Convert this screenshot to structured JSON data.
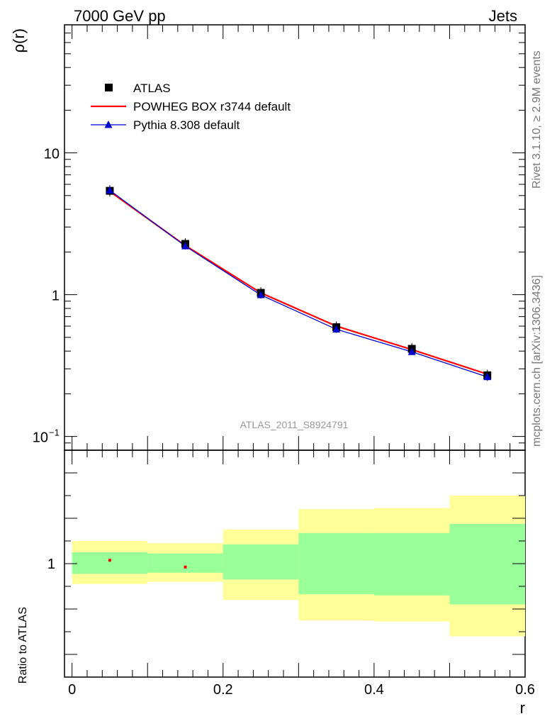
{
  "header": {
    "left_title": "7000 GeV pp",
    "right_title": "Jets"
  },
  "side_labels": {
    "rivet": "Rivet 3.1.10, ≥ 2.9M events",
    "source": "mcplots.cern.ch [arXiv:1306.3436]"
  },
  "chart_data": [
    {
      "type": "line",
      "title": "",
      "watermark": "ATLAS_2011_S8924791",
      "xlabel": "r",
      "ylabel": "ρ(r)",
      "xlim": [
        -0.01,
        0.6
      ],
      "ylim": [
        0.08,
        80
      ],
      "yscale": "log",
      "x": [
        0.05,
        0.15,
        0.25,
        0.35,
        0.45,
        0.55
      ],
      "x_bin_edges": [
        0.0,
        0.1,
        0.2,
        0.3,
        0.4,
        0.5,
        0.6
      ],
      "legend_position": "top-left",
      "series": [
        {
          "name": "ATLAS",
          "values": [
            5.4,
            2.28,
            1.03,
            0.59,
            0.415,
            0.27
          ],
          "color": "#000000",
          "marker": "square"
        },
        {
          "name": "POWHEG BOX r3744 default",
          "values": [
            5.35,
            2.22,
            1.03,
            0.6,
            0.41,
            0.275
          ],
          "color": "#ff0000",
          "marker": "line"
        },
        {
          "name": "Pythia 8.308 default",
          "values": [
            5.45,
            2.2,
            0.995,
            0.57,
            0.395,
            0.263
          ],
          "color": "#0000cc",
          "marker": "triangle"
        }
      ],
      "yticks": [
        {
          "value": 10,
          "label": "10"
        },
        {
          "value": 1,
          "label": "1"
        },
        {
          "value": 0.1,
          "label": "10",
          "sup": "−1"
        }
      ]
    },
    {
      "type": "area",
      "title": "",
      "xlabel": "r",
      "ylabel": "Ratio to ATLAS",
      "xlim": [
        -0.01,
        0.6
      ],
      "ylim": [
        0.5,
        1.5
      ],
      "x_bin_edges": [
        0.0,
        0.1,
        0.2,
        0.3,
        0.4,
        0.5,
        0.6
      ],
      "xticks": [
        {
          "value": 0,
          "label": "0"
        },
        {
          "value": 0.2,
          "label": "0.2"
        },
        {
          "value": 0.4,
          "label": "0.4"
        },
        {
          "value": 0.6,
          "label": "0.6"
        }
      ],
      "yticks": [
        {
          "value": 1,
          "label": "1"
        }
      ],
      "bands": {
        "outer_color": "#ffff99",
        "inner_color": "#99ff99",
        "outer_low": [
          0.91,
          0.92,
          0.84,
          0.75,
          0.745,
          0.68
        ],
        "outer_high": [
          1.1,
          1.09,
          1.15,
          1.24,
          1.245,
          1.3
        ],
        "inner_low": [
          0.955,
          0.96,
          0.93,
          0.865,
          0.86,
          0.82
        ],
        "inner_high": [
          1.05,
          1.045,
          1.085,
          1.135,
          1.135,
          1.175
        ]
      },
      "series": [
        {
          "name": "POWHEG BOX r3744 default",
          "x": [
            0.05,
            0.15
          ],
          "values": [
            1.015,
            0.985
          ],
          "color": "#ff0000"
        }
      ]
    }
  ]
}
